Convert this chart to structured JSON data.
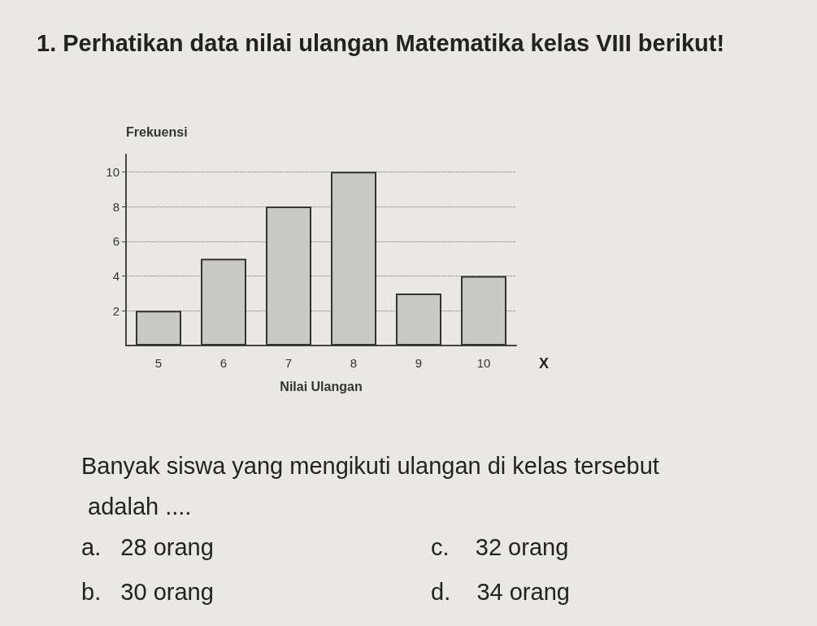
{
  "chart_data": {
    "type": "bar",
    "title": "1. Perhatikan data nilai ulangan Matematika kelas VIII berikut!",
    "xlabel": "Nilai Ulangan",
    "ylabel": "Frekuensi",
    "categories": [
      "5",
      "6",
      "7",
      "8",
      "9",
      "10"
    ],
    "values": [
      2,
      5,
      8,
      10,
      3,
      4
    ],
    "color": "#c9c9c4",
    "ylim": [
      0,
      11
    ],
    "yticks": [
      2,
      4,
      6,
      8,
      10
    ],
    "grid": "y",
    "annotations": [
      "X",
      "Banyak siswa yang mengikuti ulangan di kelas tersebut adalah ....",
      "a.   28 orang",
      "b.   30 orang",
      "c.    32 orang",
      "d.    34 orang"
    ]
  }
}
